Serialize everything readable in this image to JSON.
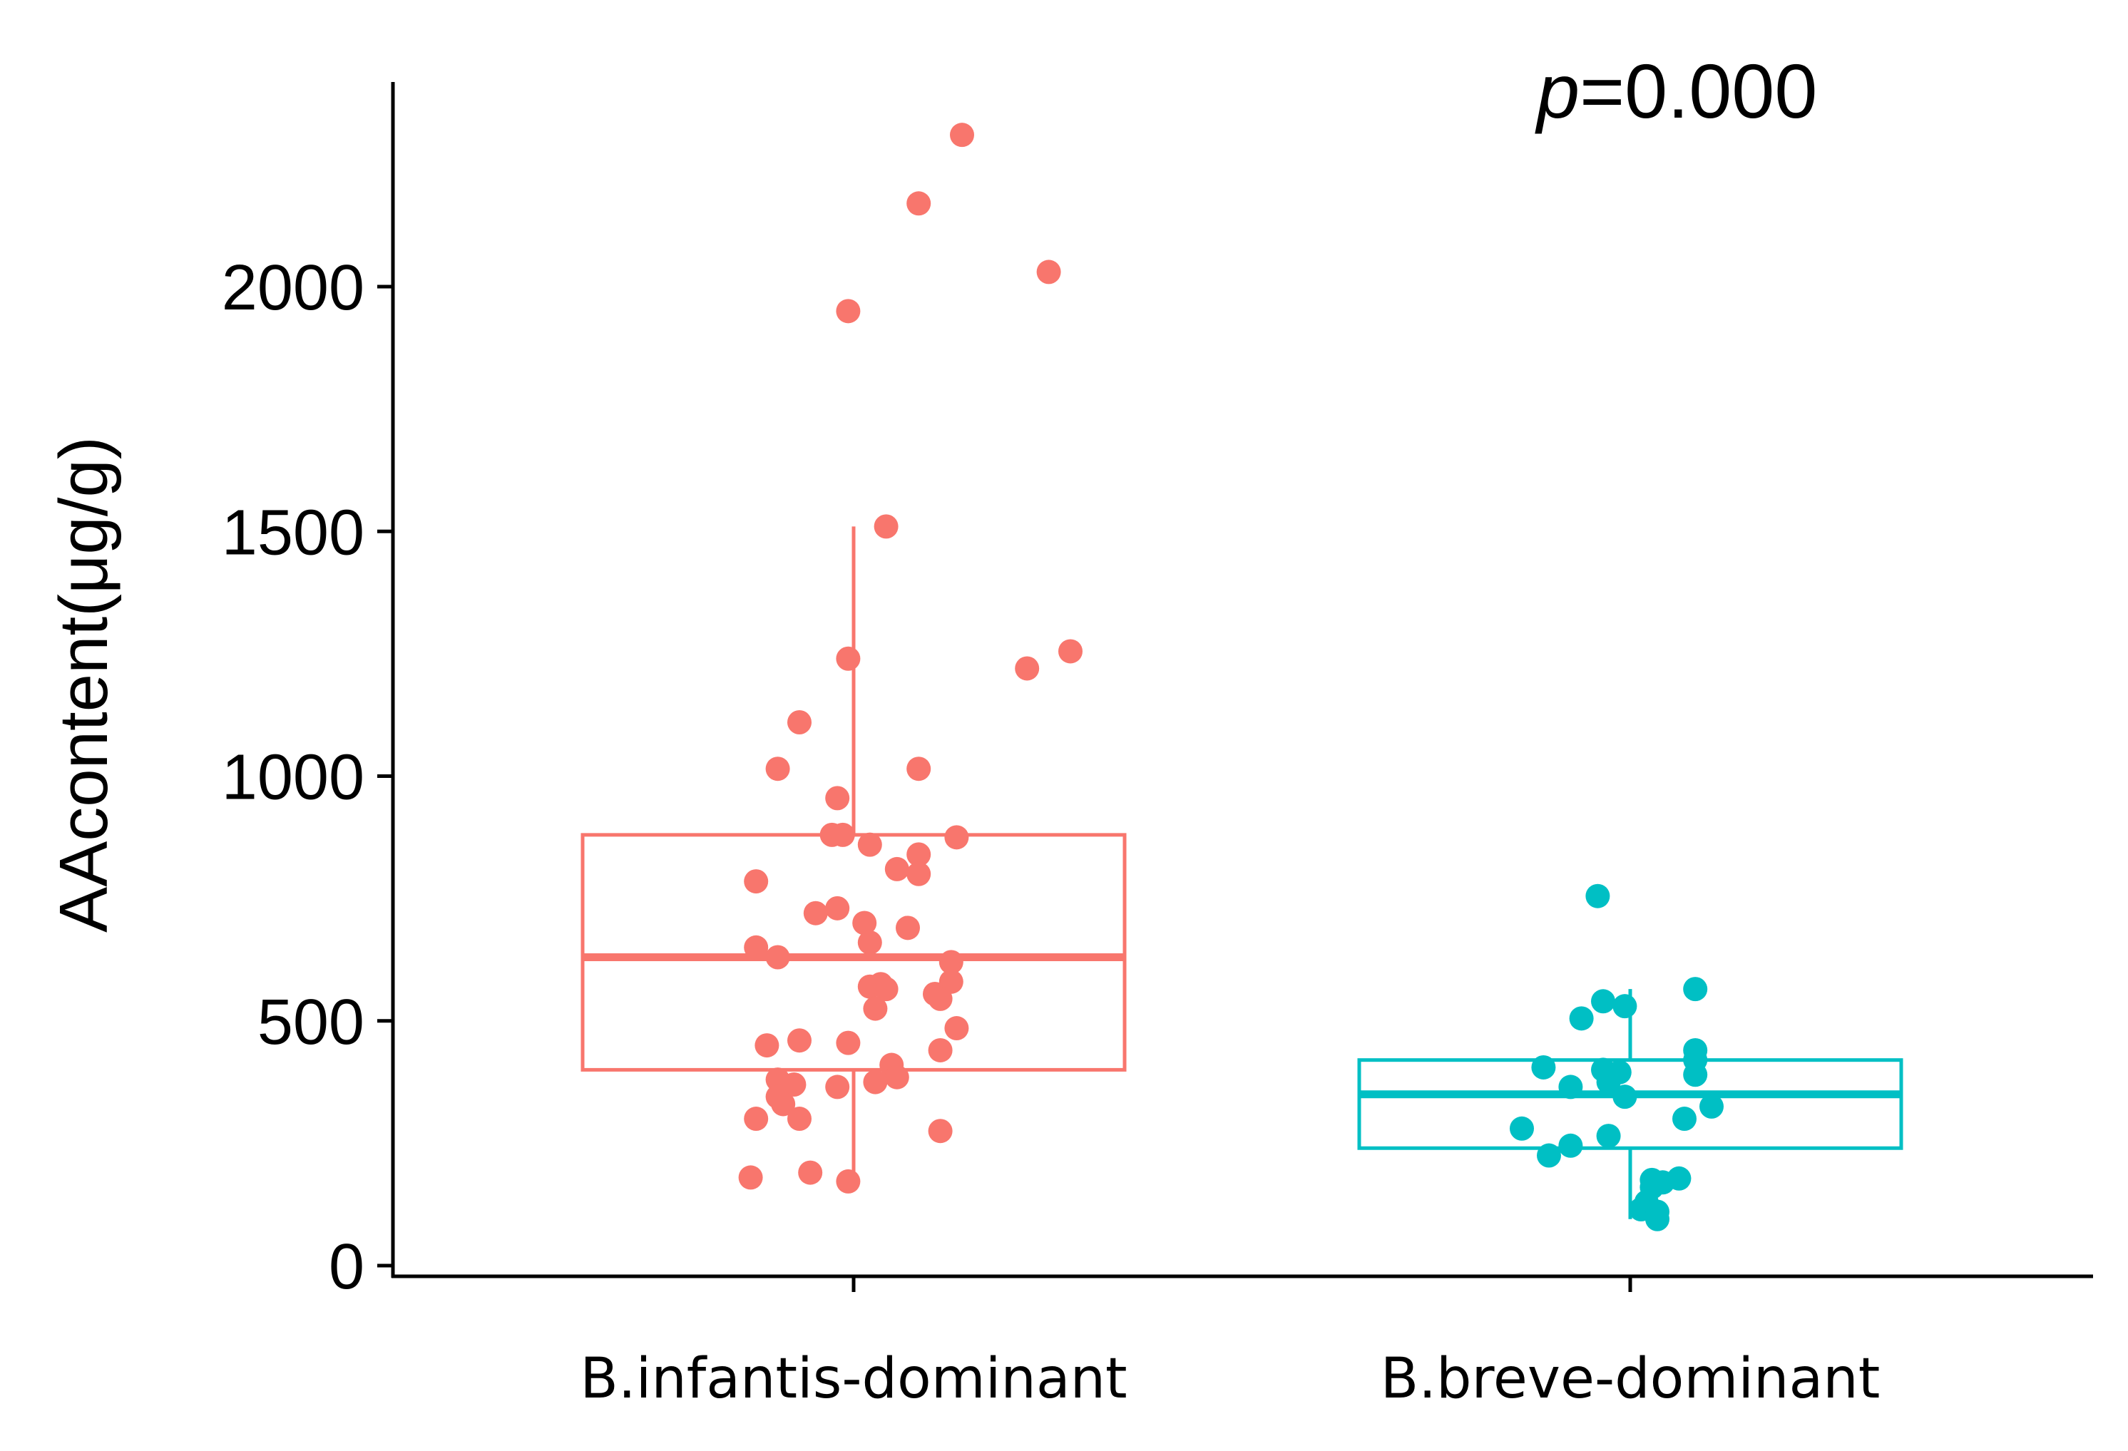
{
  "chart_data": {
    "type": "boxplot",
    "ylabel": "AAcontent(μg/g)",
    "ylim": [
      0,
      2400
    ],
    "yticks": [
      0,
      500,
      1000,
      1500,
      2000
    ],
    "annotation": {
      "prefix": "p",
      "text": "=0.000"
    },
    "groups": [
      {
        "name": "B.infantis-dominant",
        "color": "#F8766D",
        "box": {
          "q1": 400,
          "median": 630,
          "q3": 880,
          "whisker_low": 170,
          "whisker_high": 1510
        },
        "points": [
          {
            "x": 0.2,
            "y": 2310
          },
          {
            "x": 0.12,
            "y": 2170
          },
          {
            "x": 0.36,
            "y": 2030
          },
          {
            "x": -0.01,
            "y": 1950
          },
          {
            "x": 0.06,
            "y": 1510
          },
          {
            "x": 0.4,
            "y": 1255
          },
          {
            "x": -0.01,
            "y": 1240
          },
          {
            "x": 0.32,
            "y": 1220
          },
          {
            "x": -0.1,
            "y": 1110
          },
          {
            "x": -0.14,
            "y": 1015
          },
          {
            "x": 0.12,
            "y": 1015
          },
          {
            "x": -0.03,
            "y": 955
          },
          {
            "x": -0.04,
            "y": 880
          },
          {
            "x": -0.02,
            "y": 880
          },
          {
            "x": 0.19,
            "y": 875
          },
          {
            "x": 0.03,
            "y": 860
          },
          {
            "x": 0.12,
            "y": 840
          },
          {
            "x": 0.08,
            "y": 810
          },
          {
            "x": 0.12,
            "y": 800
          },
          {
            "x": -0.18,
            "y": 785
          },
          {
            "x": -0.03,
            "y": 730
          },
          {
            "x": -0.07,
            "y": 720
          },
          {
            "x": 0.1,
            "y": 690
          },
          {
            "x": 0.02,
            "y": 700
          },
          {
            "x": 0.03,
            "y": 660
          },
          {
            "x": -0.18,
            "y": 650
          },
          {
            "x": -0.14,
            "y": 630
          },
          {
            "x": 0.18,
            "y": 620
          },
          {
            "x": 0.05,
            "y": 575
          },
          {
            "x": 0.03,
            "y": 570
          },
          {
            "x": 0.06,
            "y": 565
          },
          {
            "x": 0.18,
            "y": 580
          },
          {
            "x": 0.15,
            "y": 555
          },
          {
            "x": 0.16,
            "y": 545
          },
          {
            "x": 0.04,
            "y": 525
          },
          {
            "x": 0.19,
            "y": 485
          },
          {
            "x": -0.1,
            "y": 460
          },
          {
            "x": -0.01,
            "y": 455
          },
          {
            "x": -0.16,
            "y": 450
          },
          {
            "x": 0.16,
            "y": 440
          },
          {
            "x": 0.07,
            "y": 410
          },
          {
            "x": 0.08,
            "y": 385
          },
          {
            "x": -0.14,
            "y": 380
          },
          {
            "x": -0.11,
            "y": 370
          },
          {
            "x": 0.04,
            "y": 375
          },
          {
            "x": -0.03,
            "y": 365
          },
          {
            "x": -0.14,
            "y": 345
          },
          {
            "x": -0.13,
            "y": 330
          },
          {
            "x": -0.1,
            "y": 300
          },
          {
            "x": -0.18,
            "y": 300
          },
          {
            "x": 0.16,
            "y": 275
          },
          {
            "x": -0.08,
            "y": 190
          },
          {
            "x": -0.19,
            "y": 180
          },
          {
            "x": -0.01,
            "y": 172
          }
        ]
      },
      {
        "name": "B.breve-dominant",
        "color": "#00BFC4",
        "box": {
          "q1": 240,
          "median": 350,
          "q3": 420,
          "whisker_low": 95,
          "whisker_high": 565
        },
        "points": [
          {
            "x": -0.06,
            "y": 755
          },
          {
            "x": 0.12,
            "y": 565
          },
          {
            "x": -0.05,
            "y": 540
          },
          {
            "x": -0.01,
            "y": 530
          },
          {
            "x": -0.09,
            "y": 505
          },
          {
            "x": 0.12,
            "y": 440
          },
          {
            "x": 0.12,
            "y": 420
          },
          {
            "x": -0.16,
            "y": 405
          },
          {
            "x": -0.05,
            "y": 400
          },
          {
            "x": -0.02,
            "y": 395
          },
          {
            "x": 0.12,
            "y": 390
          },
          {
            "x": -0.04,
            "y": 375
          },
          {
            "x": -0.11,
            "y": 365
          },
          {
            "x": -0.01,
            "y": 345
          },
          {
            "x": 0.15,
            "y": 325
          },
          {
            "x": 0.1,
            "y": 300
          },
          {
            "x": -0.2,
            "y": 280
          },
          {
            "x": -0.04,
            "y": 265
          },
          {
            "x": -0.11,
            "y": 245
          },
          {
            "x": -0.15,
            "y": 225
          },
          {
            "x": 0.09,
            "y": 178
          },
          {
            "x": 0.04,
            "y": 175
          },
          {
            "x": 0.06,
            "y": 170
          },
          {
            "x": 0.04,
            "y": 160
          },
          {
            "x": 0.03,
            "y": 130
          },
          {
            "x": 0.02,
            "y": 115
          },
          {
            "x": 0.05,
            "y": 110
          },
          {
            "x": 0.05,
            "y": 95
          }
        ]
      }
    ]
  }
}
